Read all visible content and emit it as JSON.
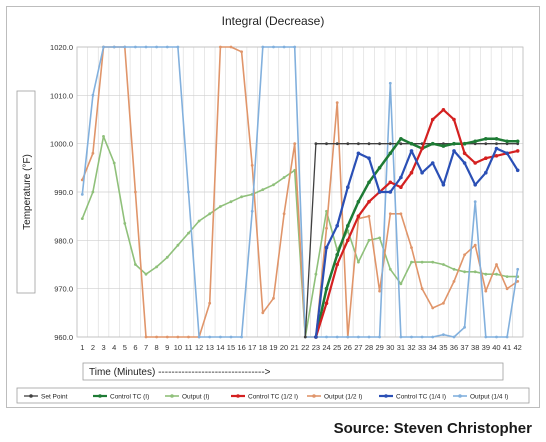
{
  "chart_data": {
    "type": "line",
    "title": "Integral (Decrease)",
    "xlabel": "Time (Minutes) -------------------------------->",
    "ylabel": "Temperature (°F)",
    "ylim": [
      960,
      1020
    ],
    "yticks": [
      "960.0",
      "970.0",
      "980.0",
      "990.0",
      "1000.0",
      "1010.0",
      "1020.0"
    ],
    "x": [
      1,
      2,
      3,
      4,
      5,
      6,
      7,
      8,
      9,
      10,
      11,
      12,
      13,
      14,
      15,
      16,
      17,
      18,
      19,
      20,
      21,
      22,
      23,
      24,
      25,
      26,
      27,
      28,
      29,
      30,
      31,
      32,
      33,
      34,
      35,
      36,
      37,
      38,
      39,
      40,
      41,
      42
    ],
    "grid": true,
    "legend_position": "bottom",
    "series": [
      {
        "name": "Set Point",
        "color": "#404040",
        "marker": "circle",
        "width": 1.3,
        "values": [
          null,
          null,
          null,
          null,
          null,
          null,
          null,
          null,
          null,
          null,
          null,
          null,
          null,
          null,
          null,
          null,
          null,
          null,
          null,
          null,
          null,
          960,
          1000,
          1000,
          1000,
          1000,
          1000,
          1000,
          1000,
          1000,
          1000,
          1000,
          1000,
          1000,
          1000,
          1000,
          1000,
          1000,
          1000,
          1000,
          1000,
          1000
        ]
      },
      {
        "name": "Control TC (I)",
        "color": "#1e7b35",
        "marker": "circle",
        "width": 2.5,
        "values": [
          null,
          null,
          null,
          null,
          null,
          null,
          null,
          null,
          null,
          null,
          null,
          null,
          null,
          null,
          null,
          null,
          null,
          null,
          null,
          null,
          null,
          null,
          960,
          970,
          977,
          983,
          988,
          992,
          995,
          998,
          1001,
          1000,
          999,
          1000,
          999.5,
          1000,
          1000,
          1000.5,
          1001,
          1001,
          1000.5,
          1000.5
        ]
      },
      {
        "name": "Output (I)",
        "color": "#8fc07a",
        "marker": "circle",
        "width": 1.6,
        "values": [
          984.5,
          990,
          1001.5,
          996,
          983.5,
          975,
          973,
          974.5,
          976.5,
          979,
          981.5,
          984,
          985.5,
          987,
          988,
          989,
          989.5,
          990.5,
          991.5,
          993,
          994.5,
          960,
          973,
          986,
          978,
          982,
          975.5,
          980,
          980.5,
          974,
          971,
          975.5,
          975.5,
          975.5,
          975,
          974,
          973.5,
          973.5,
          973,
          973,
          972.5,
          972.5
        ]
      },
      {
        "name": "Control TC (1/2 I)",
        "color": "#d42020",
        "marker": "circle",
        "width": 2.2,
        "values": [
          null,
          null,
          null,
          null,
          null,
          null,
          null,
          null,
          null,
          null,
          null,
          null,
          null,
          null,
          null,
          null,
          null,
          null,
          null,
          null,
          null,
          null,
          960,
          967,
          975,
          980,
          985,
          988,
          990,
          992,
          991,
          994,
          999,
          1005,
          1007,
          1005,
          998,
          996,
          997,
          997.5,
          998,
          998.5
        ]
      },
      {
        "name": "Output (1/2 I)",
        "color": "#e0956a",
        "marker": "circle",
        "width": 1.6,
        "values": [
          992.5,
          998,
          1020,
          1020,
          1020,
          990,
          960,
          960,
          960,
          960,
          960,
          960,
          967,
          1020,
          1020,
          1019,
          995.5,
          965,
          968,
          985.5,
          1000,
          960,
          960,
          982.5,
          1008.5,
          960,
          984.5,
          985,
          969.5,
          985.5,
          985.5,
          978.5,
          970,
          966,
          967,
          971.5,
          977,
          979,
          969.5,
          975,
          970,
          971.5
        ]
      },
      {
        "name": "Control TC (1/4 I)",
        "color": "#2a4fb5",
        "marker": "circle",
        "width": 2.2,
        "values": [
          null,
          null,
          null,
          null,
          null,
          null,
          null,
          null,
          null,
          null,
          null,
          null,
          null,
          null,
          null,
          null,
          null,
          null,
          null,
          null,
          null,
          null,
          960,
          978.5,
          983,
          991,
          998,
          997,
          990,
          990,
          993,
          998.5,
          994,
          996,
          991.5,
          998.5,
          996,
          991.5,
          994,
          999,
          998,
          994.5
        ]
      },
      {
        "name": "Output (1/4 I)",
        "color": "#82b0dd",
        "marker": "circle",
        "width": 1.6,
        "values": [
          989.5,
          1010,
          1020,
          1020,
          1020,
          1020,
          1020,
          1020,
          1020,
          1020,
          990,
          960,
          960,
          960,
          960,
          960,
          986,
          1020,
          1020,
          1020,
          1020,
          960,
          960,
          960,
          960,
          960,
          960,
          960,
          960,
          1012.5,
          960,
          960,
          960,
          960,
          960.5,
          960,
          962,
          988,
          960,
          960,
          960,
          974
        ]
      }
    ]
  },
  "source_text": "Source: Steven Christopher"
}
